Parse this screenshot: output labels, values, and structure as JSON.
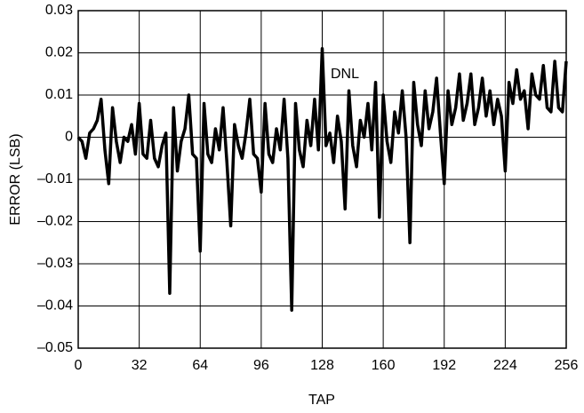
{
  "chart_data": {
    "type": "line",
    "xlabel": "TAP",
    "ylabel": "ERROR (LSB)",
    "annotations": [
      "DNL"
    ],
    "xlim": [
      0,
      256
    ],
    "xticks": [
      0,
      32,
      64,
      96,
      128,
      160,
      192,
      224,
      256
    ],
    "ylim": [
      -0.05,
      0.03
    ],
    "yticks": [
      {
        "value": -0.05,
        "label": "–0.05"
      },
      {
        "value": -0.04,
        "label": "–0.04"
      },
      {
        "value": -0.03,
        "label": "–0.03"
      },
      {
        "value": -0.02,
        "label": "–0.02"
      },
      {
        "value": -0.01,
        "label": "–0.01"
      },
      0,
      0.01,
      0.02,
      0.03
    ],
    "grid": true,
    "x": [
      0,
      2,
      4,
      6,
      8,
      10,
      12,
      14,
      16,
      18,
      20,
      22,
      24,
      26,
      28,
      30,
      32,
      34,
      36,
      38,
      40,
      42,
      44,
      46,
      48,
      50,
      52,
      54,
      56,
      58,
      60,
      62,
      64,
      66,
      68,
      70,
      72,
      74,
      76,
      78,
      80,
      82,
      84,
      86,
      88,
      90,
      92,
      94,
      96,
      98,
      100,
      102,
      104,
      106,
      108,
      110,
      112,
      114,
      116,
      118,
      120,
      122,
      124,
      126,
      128,
      130,
      132,
      134,
      136,
      138,
      140,
      142,
      144,
      146,
      148,
      150,
      152,
      154,
      156,
      158,
      160,
      162,
      164,
      166,
      168,
      170,
      172,
      174,
      176,
      178,
      180,
      182,
      184,
      186,
      188,
      190,
      192,
      194,
      196,
      198,
      200,
      202,
      204,
      206,
      208,
      210,
      212,
      214,
      216,
      218,
      220,
      222,
      224,
      226,
      228,
      230,
      232,
      234,
      236,
      238,
      240,
      242,
      244,
      246,
      248,
      250,
      252,
      254,
      256
    ],
    "series": [
      {
        "color": "#000000",
        "values": [
          0,
          -0.001,
          -0.005,
          0.001,
          0.002,
          0.004,
          0.009,
          -0.003,
          -0.011,
          0.007,
          -0.001,
          -0.006,
          0,
          -0.001,
          0.003,
          -0.004,
          0.008,
          -0.004,
          -0.005,
          0.004,
          -0.005,
          -0.007,
          -0.002,
          0.001,
          -0.037,
          0.007,
          -0.008,
          -0.001,
          0.002,
          0.01,
          -0.004,
          -0.005,
          -0.027,
          0.008,
          -0.004,
          -0.006,
          0.002,
          -0.003,
          0.007,
          -0.006,
          -0.021,
          0.003,
          -0.002,
          -0.005,
          0.001,
          0.009,
          -0.004,
          -0.005,
          -0.013,
          0.008,
          -0.004,
          -0.006,
          0.002,
          -0.003,
          0.009,
          -0.005,
          -0.041,
          0.008,
          -0.003,
          -0.007,
          0.004,
          -0.002,
          0.009,
          -0.003,
          0.021,
          -0.002,
          0.001,
          -0.006,
          0.005,
          -0.001,
          -0.017,
          0.011,
          -0.002,
          -0.007,
          0.004,
          0,
          0.008,
          -0.003,
          0.013,
          -0.019,
          0.01,
          -0.001,
          -0.006,
          0.006,
          0.001,
          0.011,
          0,
          -0.025,
          0.013,
          0.003,
          -0.002,
          0.011,
          0.002,
          0.006,
          0.014,
          0.001,
          -0.011,
          0.011,
          0.003,
          0.007,
          0.015,
          0.004,
          0.008,
          0.015,
          0.003,
          0.007,
          0.014,
          0.005,
          0.011,
          0.003,
          0.009,
          0.005,
          -0.008,
          0.013,
          0.008,
          0.016,
          0.009,
          0.011,
          0.002,
          0.015,
          0.01,
          0.009,
          0.017,
          0.007,
          0.006,
          0.018,
          0.007,
          0.006,
          0.018
        ]
      }
    ]
  }
}
